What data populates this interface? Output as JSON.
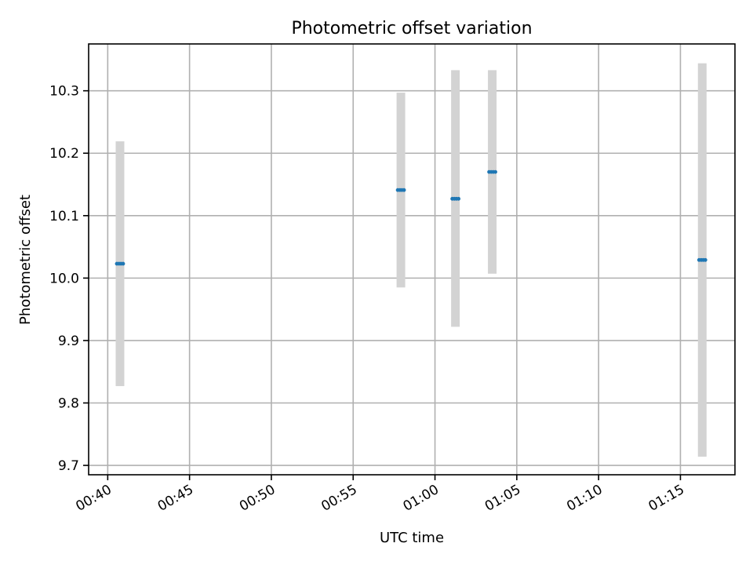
{
  "chart_data": {
    "type": "scatter",
    "title": "Photometric offset variation",
    "xlabel": "UTC time",
    "ylabel": "Photometric offset",
    "grid": true,
    "x_ticks": [
      "00:40",
      "00:45",
      "00:50",
      "00:55",
      "01:00",
      "01:05",
      "01:10",
      "01:15"
    ],
    "y_ticks": [
      9.7,
      9.8,
      9.9,
      10.0,
      10.1,
      10.2,
      10.3
    ],
    "y_tick_labels": [
      "9.7",
      "9.8",
      "9.9",
      "10.0",
      "10.1",
      "10.2",
      "10.3"
    ],
    "xlim": [
      "00:38:50",
      "01:18:20"
    ],
    "ylim": [
      9.685,
      10.375
    ],
    "colors": {
      "points": "#1f77b4",
      "error_bars": "#d3d3d3"
    },
    "points": [
      {
        "x": "00:40:45",
        "y": 10.023,
        "y_low": 9.827,
        "y_high": 10.219
      },
      {
        "x": "00:57:55",
        "y": 10.141,
        "y_low": 9.985,
        "y_high": 10.297
      },
      {
        "x": "01:01:15",
        "y": 10.127,
        "y_low": 9.922,
        "y_high": 10.333
      },
      {
        "x": "01:03:30",
        "y": 10.17,
        "y_low": 10.007,
        "y_high": 10.333
      },
      {
        "x": "01:16:20",
        "y": 10.029,
        "y_low": 9.714,
        "y_high": 10.344
      }
    ]
  }
}
